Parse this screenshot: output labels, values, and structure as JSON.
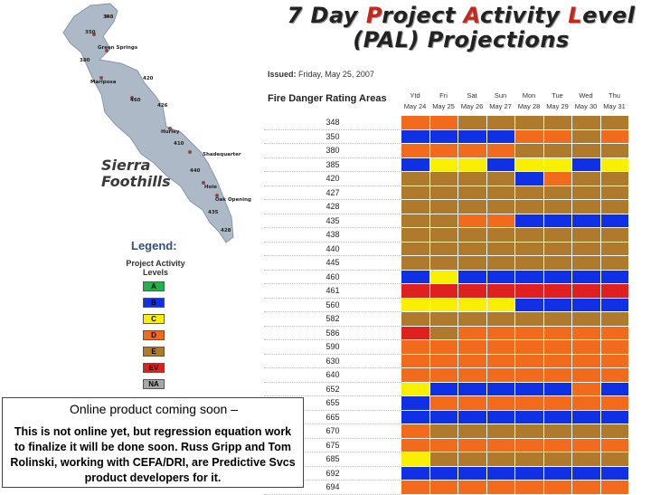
{
  "title": {
    "line1_parts": [
      "7 Day ",
      "P",
      "roject ",
      "A",
      "ctivity ",
      "L",
      "evel"
    ],
    "line2": "(PAL) Projections"
  },
  "issued": {
    "label": "Issued:",
    "value": "Friday, May 25, 2007"
  },
  "table": {
    "area_header": "Fire Danger Rating Areas",
    "days": [
      {
        "day": "Ytd",
        "date": "May 24"
      },
      {
        "day": "Fri",
        "date": "May 25"
      },
      {
        "day": "Sat",
        "date": "May 26"
      },
      {
        "day": "Sun",
        "date": "May 27"
      },
      {
        "day": "Mon",
        "date": "May 28"
      },
      {
        "day": "Tue",
        "date": "May 29"
      },
      {
        "day": "Wed",
        "date": "May 30"
      },
      {
        "day": "Thu",
        "date": "May 31"
      }
    ],
    "rows": [
      {
        "area": "348",
        "levels": [
          "D",
          "D",
          "E",
          "E",
          "E",
          "E",
          "E",
          "E"
        ]
      },
      {
        "area": "350",
        "levels": [
          "B",
          "B",
          "B",
          "B",
          "D",
          "D",
          "E",
          "D"
        ]
      },
      {
        "area": "380",
        "levels": [
          "D",
          "D",
          "D",
          "D",
          "E",
          "E",
          "E",
          "E"
        ]
      },
      {
        "area": "385",
        "levels": [
          "B",
          "C",
          "C",
          "B",
          "C",
          "C",
          "B",
          "C"
        ]
      },
      {
        "area": "420",
        "levels": [
          "E",
          "E",
          "E",
          "E",
          "B",
          "D",
          "E",
          "E"
        ]
      },
      {
        "area": "427",
        "levels": [
          "E",
          "E",
          "E",
          "E",
          "E",
          "E",
          "E",
          "E"
        ]
      },
      {
        "area": "428",
        "levels": [
          "E",
          "E",
          "E",
          "E",
          "E",
          "E",
          "E",
          "E"
        ]
      },
      {
        "area": "435",
        "levels": [
          "E",
          "E",
          "D",
          "D",
          "B",
          "B",
          "B",
          "B"
        ]
      },
      {
        "area": "438",
        "levels": [
          "E",
          "E",
          "E",
          "E",
          "E",
          "E",
          "E",
          "E"
        ]
      },
      {
        "area": "440",
        "levels": [
          "E",
          "E",
          "E",
          "E",
          "E",
          "E",
          "E",
          "E"
        ]
      },
      {
        "area": "445",
        "levels": [
          "E",
          "E",
          "E",
          "E",
          "E",
          "E",
          "E",
          "E"
        ]
      },
      {
        "area": "460",
        "levels": [
          "B",
          "C",
          "B",
          "B",
          "B",
          "B",
          "B",
          "B"
        ]
      },
      {
        "area": "461",
        "levels": [
          "EV",
          "EV",
          "EV",
          "EV",
          "EV",
          "EV",
          "EV",
          "EV"
        ]
      },
      {
        "area": "560",
        "levels": [
          "C",
          "C",
          "C",
          "C",
          "B",
          "B",
          "B",
          "B"
        ]
      },
      {
        "area": "582",
        "levels": [
          "E",
          "E",
          "E",
          "E",
          "E",
          "E",
          "E",
          "E"
        ]
      },
      {
        "area": "586",
        "levels": [
          "EV",
          "E",
          "D",
          "D",
          "D",
          "D",
          "D",
          "D"
        ]
      },
      {
        "area": "590",
        "levels": [
          "D",
          "D",
          "D",
          "D",
          "D",
          "D",
          "D",
          "D"
        ]
      },
      {
        "area": "630",
        "levels": [
          "D",
          "D",
          "D",
          "D",
          "D",
          "D",
          "D",
          "D"
        ]
      },
      {
        "area": "640",
        "levels": [
          "D",
          "D",
          "D",
          "D",
          "D",
          "D",
          "D",
          "D"
        ]
      },
      {
        "area": "652",
        "levels": [
          "C",
          "B",
          "B",
          "B",
          "B",
          "B",
          "D",
          "B"
        ]
      },
      {
        "area": "655",
        "levels": [
          "B",
          "D",
          "D",
          "D",
          "D",
          "D",
          "D",
          "D"
        ]
      },
      {
        "area": "665",
        "levels": [
          "B",
          "B",
          "B",
          "B",
          "B",
          "B",
          "B",
          "B"
        ]
      },
      {
        "area": "670",
        "levels": [
          "D",
          "E",
          "E",
          "E",
          "E",
          "E",
          "E",
          "E"
        ]
      },
      {
        "area": "675",
        "levels": [
          "D",
          "D",
          "D",
          "D",
          "D",
          "D",
          "D",
          "D"
        ]
      },
      {
        "area": "685",
        "levels": [
          "C",
          "E",
          "E",
          "E",
          "E",
          "E",
          "E",
          "E"
        ]
      },
      {
        "area": "692",
        "levels": [
          "B",
          "B",
          "B",
          "B",
          "B",
          "B",
          "B",
          "B"
        ]
      },
      {
        "area": "694",
        "levels": [
          "D",
          "D",
          "D",
          "D",
          "D",
          "D",
          "D",
          "D"
        ]
      }
    ]
  },
  "legend": {
    "title": "Legend:",
    "subtitle": "Project Activity Levels",
    "items": [
      {
        "code": "A",
        "color": "#22b14c"
      },
      {
        "code": "B",
        "color": "#1030e6"
      },
      {
        "code": "C",
        "color": "#f8f000"
      },
      {
        "code": "D",
        "color": "#f26a1b"
      },
      {
        "code": "E",
        "color": "#b07a2c"
      },
      {
        "code": "EV",
        "color": "#e0201e"
      },
      {
        "code": "NA",
        "color": "#a8a8a8"
      }
    ]
  },
  "map": {
    "region_label_1": "Sierra",
    "region_label_2": "Foothills",
    "labels": [
      "348",
      "350",
      "Green Springs",
      "380",
      "Mariposa",
      "420",
      "460",
      "426",
      "Hurley",
      "410",
      "Shadequarter",
      "Hole",
      "Oak Opening",
      "440",
      "435",
      "428"
    ]
  },
  "note": {
    "title": "Online product coming soon –",
    "body": "This is not online yet, but regression equation work to finalize it will be done soon. Russ Gripp and Tom Rolinski, working with CEFA/DRI, are Predictive Svcs product developers for it."
  },
  "colors": {
    "A": "#22b14c",
    "B": "#1030e6",
    "C": "#f8f000",
    "D": "#f26a1b",
    "E": "#b07a2c",
    "EV": "#e0201e",
    "NA": "#a8a8a8"
  }
}
